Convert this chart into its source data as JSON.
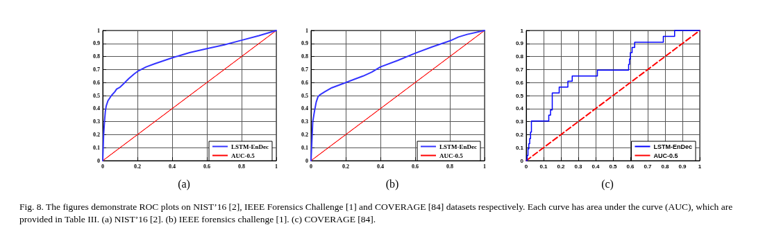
{
  "chart_data": [
    {
      "type": "line",
      "annotations": [
        "(a)",
        "Fig. 8.   The figures demonstrate ROC plots on NIST’16 [2], IEEE Forensics Challenge [1] and COVERAGE [84] datasets respectively. Each curve has area under the curve (AUC), which are provided in Table III. (a) NIST’16 [2]. (b) IEEE forensics challenge [1]. (c) COVERAGE [84]."
      ],
      "series": [
        {
          "name": "LSTM-EnDec",
          "color": "#3333ff",
          "line_style": "solid",
          "x": [
            0,
            0.005,
            0.01,
            0.015,
            0.02,
            0.03,
            0.05,
            0.07,
            0.08,
            0.1,
            0.12,
            0.15,
            0.18,
            0.2,
            0.25,
            0.3,
            0.4,
            0.45,
            0.5,
            0.6,
            0.7,
            0.8,
            0.9,
            1
          ],
          "values": [
            0,
            0.2,
            0.3,
            0.38,
            0.42,
            0.46,
            0.5,
            0.53,
            0.55,
            0.565,
            0.59,
            0.63,
            0.665,
            0.685,
            0.72,
            0.745,
            0.79,
            0.81,
            0.83,
            0.86,
            0.89,
            0.925,
            0.96,
            1
          ]
        },
        {
          "name": "AUC-0.5",
          "color": "#ff0000",
          "line_style": "dotted",
          "x": [
            0,
            1
          ],
          "values": [
            0,
            1
          ]
        }
      ],
      "xlim": [
        0,
        1
      ],
      "ylim": [
        0,
        1
      ],
      "xticks": [
        0,
        0.2,
        0.4,
        0.6,
        0.8,
        1
      ],
      "yticks": [
        0,
        0.1,
        0.2,
        0.3,
        0.4,
        0.5,
        0.6,
        0.7,
        0.8,
        0.9,
        1
      ],
      "grid": true,
      "legend": "bottom right",
      "marker": "none"
    },
    {
      "type": "line",
      "annotations": [
        "(b)"
      ],
      "series": [
        {
          "name": "LSTM-EnDec",
          "color": "#3333ff",
          "line_style": "solid",
          "x": [
            0,
            0.005,
            0.01,
            0.02,
            0.03,
            0.04,
            0.05,
            0.08,
            0.12,
            0.2,
            0.3,
            0.35,
            0.4,
            0.5,
            0.6,
            0.7,
            0.8,
            0.85,
            0.9,
            1
          ],
          "values": [
            0,
            0.15,
            0.3,
            0.38,
            0.45,
            0.49,
            0.505,
            0.53,
            0.56,
            0.6,
            0.65,
            0.68,
            0.72,
            0.77,
            0.825,
            0.875,
            0.92,
            0.95,
            0.97,
            1
          ]
        },
        {
          "name": "AUC-0.5",
          "color": "#ff0000",
          "line_style": "dotted",
          "x": [
            0,
            1
          ],
          "values": [
            0,
            1
          ]
        }
      ],
      "xlim": [
        0,
        1
      ],
      "ylim": [
        0,
        1
      ],
      "xticks": [
        0,
        0.2,
        0.4,
        0.6,
        0.8,
        1
      ],
      "yticks": [
        0,
        0.1,
        0.2,
        0.3,
        0.4,
        0.5,
        0.6,
        0.7,
        0.8,
        0.9,
        1
      ],
      "grid": true,
      "legend": "bottom right",
      "marker": "none"
    },
    {
      "type": "line",
      "annotations": [
        "(c)"
      ],
      "series": [
        {
          "type": "step",
          "name": "LSTM-EnDec",
          "color": "#0000ff",
          "line_style": "solid",
          "x": [
            0,
            0.005,
            0.01,
            0.015,
            0.02,
            0.025,
            0.03,
            0.13,
            0.14,
            0.15,
            0.19,
            0.24,
            0.265,
            0.41,
            0.59,
            0.595,
            0.6,
            0.61,
            0.625,
            0.79,
            0.855,
            1
          ],
          "values": [
            0,
            0.04,
            0.09,
            0.13,
            0.17,
            0.22,
            0.305,
            0.35,
            0.39,
            0.52,
            0.565,
            0.61,
            0.65,
            0.695,
            0.74,
            0.78,
            0.83,
            0.87,
            0.91,
            0.955,
            1,
            1
          ]
        },
        {
          "name": "AUC-0.5",
          "color": "#ff0000",
          "line_style": "dashed",
          "x": [
            0,
            1
          ],
          "values": [
            0,
            1
          ]
        }
      ],
      "xlim": [
        0,
        1
      ],
      "ylim": [
        0,
        1
      ],
      "xticks": [
        0,
        0.1,
        0.2,
        0.3,
        0.4,
        0.5,
        0.6,
        0.7,
        0.8,
        0.9,
        1
      ],
      "yticks": [
        0,
        0.1,
        0.2,
        0.3,
        0.4,
        0.5,
        0.6,
        0.7,
        0.8,
        0.9,
        1
      ],
      "grid": true,
      "legend": "bottom right",
      "marker": "none"
    }
  ]
}
